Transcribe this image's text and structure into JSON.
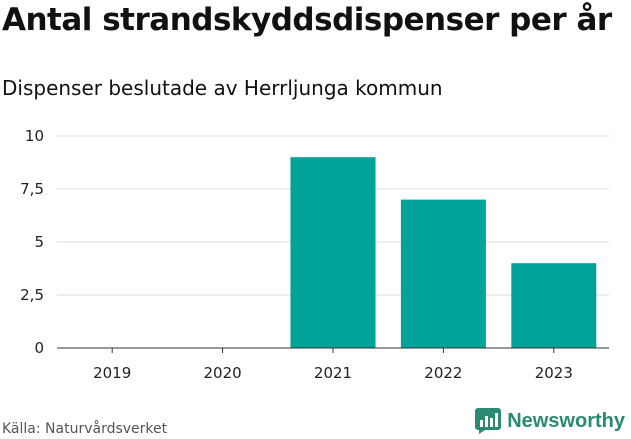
{
  "header": {
    "title": "Antal strandskyddsdispenser per år",
    "subtitle": "Dispenser beslutade av Herrljunga kommun"
  },
  "footer": {
    "source": "Källa: Naturvårdsverket",
    "brand": "Newsworthy",
    "brand_icon": "bar-chart-logo-icon"
  },
  "colors": {
    "bar": "#00a398",
    "grid": "#dddddd",
    "brand": "#2a8a73"
  },
  "chart_data": {
    "type": "bar",
    "title": "Antal strandskyddsdispenser per år",
    "subtitle": "Dispenser beslutade av Herrljunga kommun",
    "xlabel": "",
    "ylabel": "",
    "categories": [
      "2019",
      "2020",
      "2021",
      "2022",
      "2023"
    ],
    "values": [
      0,
      0,
      9,
      7,
      4
    ],
    "ylim": [
      0,
      10
    ],
    "yticks": [
      0,
      2.5,
      5,
      7.5,
      10
    ],
    "ytick_labels": [
      "0",
      "2,5",
      "5",
      "7,5",
      "10"
    ],
    "grid": true,
    "legend": "none"
  }
}
